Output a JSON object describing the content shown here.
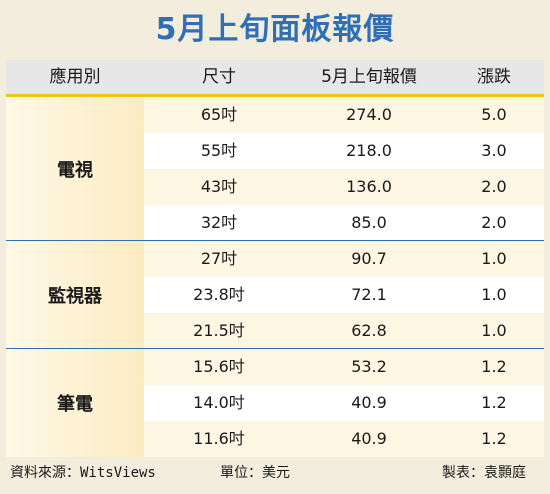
{
  "title": "5月上旬面板報價",
  "headers": [
    "應用別",
    "尺寸",
    "5月上旬報價",
    "漲跌"
  ],
  "groups": [
    {
      "label": "電視",
      "rows": [
        {
          "size": "65吋",
          "price": "274.0",
          "change": "5.0"
        },
        {
          "size": "55吋",
          "price": "218.0",
          "change": "3.0"
        },
        {
          "size": "43吋",
          "price": "136.0",
          "change": "2.0"
        },
        {
          "size": "32吋",
          "price": "85.0",
          "change": "2.0"
        }
      ]
    },
    {
      "label": "監視器",
      "rows": [
        {
          "size": "27吋",
          "price": "90.7",
          "change": "1.0"
        },
        {
          "size": "23.8吋",
          "price": "72.1",
          "change": "1.0"
        },
        {
          "size": "21.5吋",
          "price": "62.8",
          "change": "1.0"
        }
      ]
    },
    {
      "label": "筆電",
      "rows": [
        {
          "size": "15.6吋",
          "price": "53.2",
          "change": "1.2"
        },
        {
          "size": "14.0吋",
          "price": "40.9",
          "change": "1.2"
        },
        {
          "size": "11.6吋",
          "price": "40.9",
          "change": "1.2"
        }
      ]
    }
  ],
  "footer": {
    "source": "資料來源：WitsViews",
    "unit": "單位：美元",
    "credit": "製表：袁顥庭"
  },
  "colors": {
    "title": "#2f6fb5",
    "header_bg": "#e7e7e7",
    "accent_line": "#f0c419",
    "group_separator": "#2f6fb5",
    "row_shade": "#fdf6e3",
    "label_shade": "#fbecc2"
  }
}
